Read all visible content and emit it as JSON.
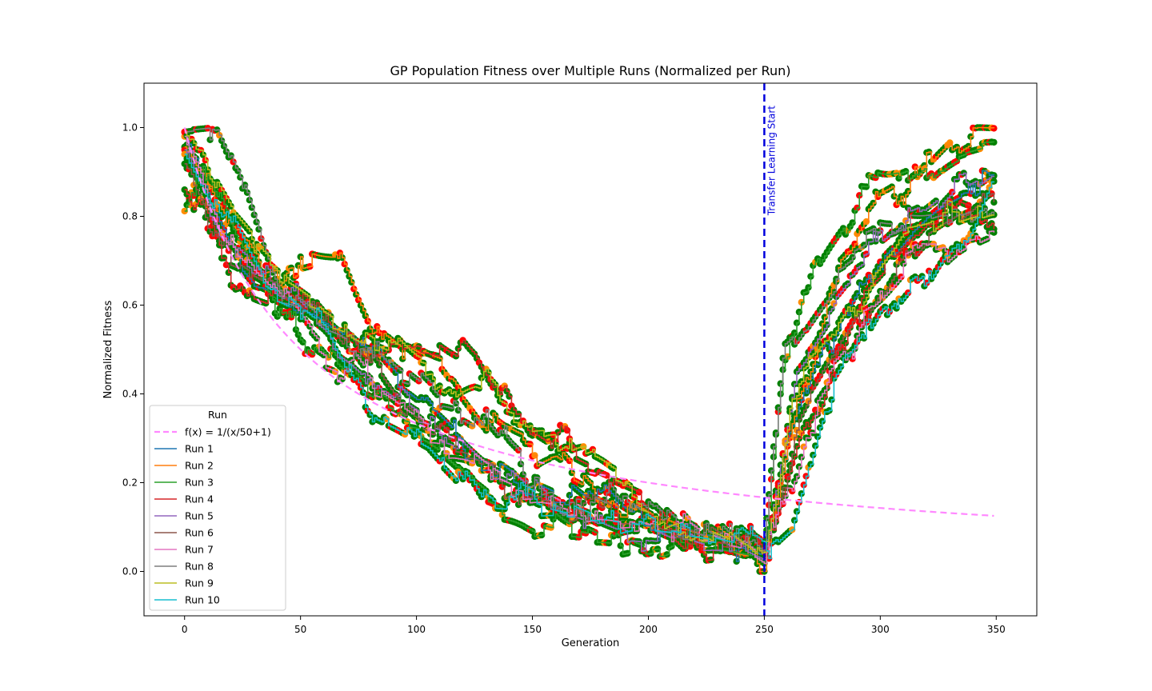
{
  "chart_data": {
    "type": "line",
    "title": "GP Population Fitness over Multiple Runs (Normalized per Run)",
    "xlabel": "Generation",
    "ylabel": "Normalized Fitness",
    "xlim": [
      -17.5,
      367.5
    ],
    "ylim": [
      -0.1,
      1.1
    ],
    "xticks": [
      0,
      50,
      100,
      150,
      200,
      250,
      300,
      350
    ],
    "yticks": [
      0.0,
      0.2,
      0.4,
      0.6,
      0.8,
      1.0
    ],
    "xtick_labels": [
      "0",
      "50",
      "100",
      "150",
      "200",
      "250",
      "300",
      "350"
    ],
    "ytick_labels": [
      "0.0",
      "0.2",
      "0.4",
      "0.6",
      "0.8",
      "1.0"
    ],
    "grid": false,
    "legend": {
      "title": "Run",
      "placement": "lower-left"
    },
    "reference_curve": {
      "label": "f(x) = 1/(x/50+1)",
      "color": "#ff88ff",
      "style": "dashed",
      "x_start": 0,
      "x_end": 349
    },
    "vline": {
      "x": 250,
      "color": "#0000dd",
      "style": "dashed",
      "label": "Transfer Learning Start"
    },
    "marker_colors": [
      "#008000",
      "#ff0000",
      "#ff8c00"
    ],
    "series": [
      {
        "name": "Run 1",
        "color": "#1f77b4",
        "anchors": [
          [
            0,
            0.99
          ],
          [
            10,
            0.82
          ],
          [
            30,
            0.66
          ],
          [
            60,
            0.56
          ],
          [
            90,
            0.44
          ],
          [
            120,
            0.3
          ],
          [
            150,
            0.19
          ],
          [
            180,
            0.14
          ],
          [
            210,
            0.1
          ],
          [
            240,
            0.07
          ],
          [
            250,
            0.04
          ],
          [
            260,
            0.28
          ],
          [
            275,
            0.52
          ],
          [
            300,
            0.72
          ],
          [
            325,
            0.82
          ],
          [
            348,
            0.88
          ]
        ]
      },
      {
        "name": "Run 2",
        "color": "#ff7f0e",
        "anchors": [
          [
            0,
            0.96
          ],
          [
            15,
            0.8
          ],
          [
            35,
            0.68
          ],
          [
            65,
            0.7
          ],
          [
            85,
            0.49
          ],
          [
            110,
            0.47
          ],
          [
            130,
            0.32
          ],
          [
            160,
            0.28
          ],
          [
            185,
            0.14
          ],
          [
            220,
            0.09
          ],
          [
            250,
            0.02
          ],
          [
            262,
            0.35
          ],
          [
            280,
            0.62
          ],
          [
            300,
            0.83
          ],
          [
            330,
            0.97
          ],
          [
            348,
            0.99
          ]
        ]
      },
      {
        "name": "Run 3",
        "color": "#2ca02c",
        "anchors": [
          [
            0,
            0.8
          ],
          [
            8,
            0.92
          ],
          [
            25,
            0.72
          ],
          [
            50,
            0.5
          ],
          [
            75,
            0.42
          ],
          [
            100,
            0.34
          ],
          [
            125,
            0.2
          ],
          [
            150,
            0.1
          ],
          [
            175,
            0.08
          ],
          [
            200,
            0.05
          ],
          [
            225,
            0.06
          ],
          [
            250,
            0.03
          ],
          [
            258,
            0.45
          ],
          [
            270,
            0.7
          ],
          [
            290,
            0.82
          ],
          [
            320,
            0.92
          ],
          [
            348,
            0.96
          ]
        ]
      },
      {
        "name": "Run 4",
        "color": "#d62728",
        "anchors": [
          [
            0,
            0.86
          ],
          [
            12,
            0.74
          ],
          [
            30,
            0.6
          ],
          [
            55,
            0.58
          ],
          [
            80,
            0.47
          ],
          [
            100,
            0.51
          ],
          [
            125,
            0.46
          ],
          [
            145,
            0.32
          ],
          [
            170,
            0.25
          ],
          [
            200,
            0.17
          ],
          [
            225,
            0.0
          ],
          [
            245,
            0.06
          ],
          [
            250,
            0.03
          ],
          [
            265,
            0.3
          ],
          [
            290,
            0.6
          ],
          [
            320,
            0.78
          ],
          [
            348,
            0.81
          ]
        ]
      },
      {
        "name": "Run 5",
        "color": "#9467bd",
        "anchors": [
          [
            0,
            0.95
          ],
          [
            15,
            0.78
          ],
          [
            40,
            0.64
          ],
          [
            60,
            0.55
          ],
          [
            85,
            0.4
          ],
          [
            110,
            0.33
          ],
          [
            130,
            0.24
          ],
          [
            155,
            0.16
          ],
          [
            180,
            0.1
          ],
          [
            200,
            0.07
          ],
          [
            230,
            0.05
          ],
          [
            250,
            0.02
          ],
          [
            262,
            0.4
          ],
          [
            285,
            0.62
          ],
          [
            310,
            0.78
          ],
          [
            330,
            0.86
          ],
          [
            348,
            0.9
          ]
        ]
      },
      {
        "name": "Run 6",
        "color": "#8c564b",
        "anchors": [
          [
            0,
            0.93
          ],
          [
            20,
            0.7
          ],
          [
            45,
            0.62
          ],
          [
            70,
            0.49
          ],
          [
            95,
            0.36
          ],
          [
            115,
            0.3
          ],
          [
            140,
            0.22
          ],
          [
            165,
            0.15
          ],
          [
            190,
            0.12
          ],
          [
            215,
            0.08
          ],
          [
            240,
            0.06
          ],
          [
            250,
            0.03
          ],
          [
            265,
            0.36
          ],
          [
            290,
            0.58
          ],
          [
            315,
            0.74
          ],
          [
            348,
            0.85
          ]
        ]
      },
      {
        "name": "Run 7",
        "color": "#e377c2",
        "anchors": [
          [
            0,
            0.98
          ],
          [
            18,
            0.76
          ],
          [
            42,
            0.61
          ],
          [
            68,
            0.46
          ],
          [
            92,
            0.38
          ],
          [
            118,
            0.28
          ],
          [
            142,
            0.2
          ],
          [
            168,
            0.14
          ],
          [
            192,
            0.11
          ],
          [
            218,
            0.08
          ],
          [
            242,
            0.05
          ],
          [
            250,
            0.02
          ],
          [
            268,
            0.33
          ],
          [
            292,
            0.54
          ],
          [
            318,
            0.72
          ],
          [
            348,
            0.76
          ]
        ]
      },
      {
        "name": "Run 8",
        "color": "#7f7f7f",
        "anchors": [
          [
            0,
            0.99
          ],
          [
            14,
            1.0
          ],
          [
            25,
            0.86
          ],
          [
            40,
            0.64
          ],
          [
            65,
            0.55
          ],
          [
            90,
            0.45
          ],
          [
            115,
            0.38
          ],
          [
            140,
            0.27
          ],
          [
            165,
            0.19
          ],
          [
            190,
            0.13
          ],
          [
            215,
            0.09
          ],
          [
            240,
            0.05
          ],
          [
            250,
            0.02
          ],
          [
            258,
            0.48
          ],
          [
            275,
            0.6
          ],
          [
            300,
            0.76
          ],
          [
            325,
            0.8
          ],
          [
            348,
            0.83
          ]
        ]
      },
      {
        "name": "Run 9",
        "color": "#bcbd22",
        "anchors": [
          [
            0,
            0.99
          ],
          [
            20,
            0.82
          ],
          [
            45,
            0.66
          ],
          [
            75,
            0.53
          ],
          [
            100,
            0.47
          ],
          [
            125,
            0.44
          ],
          [
            150,
            0.34
          ],
          [
            175,
            0.3
          ],
          [
            200,
            0.16
          ],
          [
            225,
            0.11
          ],
          [
            240,
            0.06
          ],
          [
            250,
            0.02
          ],
          [
            262,
            0.34
          ],
          [
            285,
            0.58
          ],
          [
            310,
            0.76
          ],
          [
            330,
            0.8
          ],
          [
            348,
            0.81
          ]
        ]
      },
      {
        "name": "Run 10",
        "color": "#17becf",
        "anchors": [
          [
            0,
            0.94
          ],
          [
            12,
            0.82
          ],
          [
            35,
            0.64
          ],
          [
            60,
            0.55
          ],
          [
            80,
            0.36
          ],
          [
            105,
            0.28
          ],
          [
            130,
            0.13
          ],
          [
            150,
            0.14
          ],
          [
            175,
            0.12
          ],
          [
            200,
            0.1
          ],
          [
            230,
            0.07
          ],
          [
            250,
            0.05
          ],
          [
            262,
            0.1
          ],
          [
            280,
            0.45
          ],
          [
            300,
            0.6
          ],
          [
            320,
            0.68
          ],
          [
            340,
            0.8
          ],
          [
            348,
            0.89
          ]
        ]
      }
    ]
  }
}
